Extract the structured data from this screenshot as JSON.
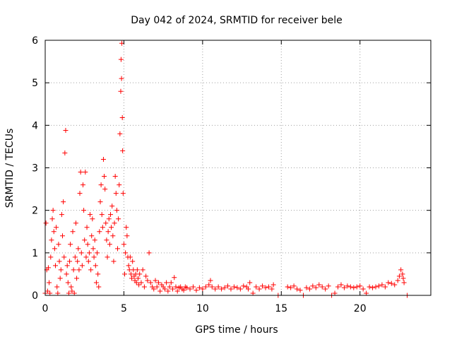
{
  "chart_data": {
    "type": "scatter",
    "title": "Day 042 of 2024, SRMTID for receiver bele",
    "xlabel": "GPS time / hours",
    "ylabel": "SRMTID / TECUs",
    "xlim": [
      0,
      24.5
    ],
    "ylim": [
      0,
      6
    ],
    "xticks": [
      0,
      5,
      10,
      15,
      20
    ],
    "xtick_labels": [
      "0",
      "5",
      "10",
      "15",
      "20"
    ],
    "yticks": [
      0,
      1,
      2,
      3,
      4,
      5,
      6
    ],
    "ytick_labels": [
      "0",
      "1",
      "2",
      "3",
      "4",
      "5",
      "6"
    ],
    "grid": true,
    "marker": "plus",
    "series": [
      {
        "name": "SRMTID",
        "color": "#ff0000",
        "points": [
          [
            0.0,
            0.05
          ],
          [
            0.05,
            1.7
          ],
          [
            0.1,
            0.6
          ],
          [
            0.15,
            0.1
          ],
          [
            0.2,
            0.65
          ],
          [
            0.25,
            0.3
          ],
          [
            0.3,
            0.05
          ],
          [
            0.35,
            0.9
          ],
          [
            0.4,
            1.3
          ],
          [
            0.45,
            1.8
          ],
          [
            0.5,
            2.0
          ],
          [
            0.55,
            1.5
          ],
          [
            0.6,
            1.1
          ],
          [
            0.65,
            0.7
          ],
          [
            0.7,
            1.6
          ],
          [
            0.75,
            0.2
          ],
          [
            0.8,
            0.05
          ],
          [
            0.85,
            1.2
          ],
          [
            0.9,
            0.8
          ],
          [
            0.95,
            0.4
          ],
          [
            1.0,
            0.6
          ],
          [
            1.05,
            1.9
          ],
          [
            1.1,
            1.4
          ],
          [
            1.15,
            2.2
          ],
          [
            1.2,
            0.9
          ],
          [
            1.25,
            3.35
          ],
          [
            1.3,
            3.88
          ],
          [
            1.35,
            0.5
          ],
          [
            1.4,
            0.7
          ],
          [
            1.45,
            0.3
          ],
          [
            1.5,
            0.05
          ],
          [
            1.55,
            0.8
          ],
          [
            1.6,
            1.2
          ],
          [
            1.65,
            0.2
          ],
          [
            1.7,
            0.1
          ],
          [
            1.75,
            1.5
          ],
          [
            1.8,
            0.6
          ],
          [
            1.85,
            0.05
          ],
          [
            1.9,
            0.9
          ],
          [
            1.95,
            1.7
          ],
          [
            2.0,
            0.4
          ],
          [
            2.05,
            0.8
          ],
          [
            2.1,
            1.1
          ],
          [
            2.15,
            0.6
          ],
          [
            2.2,
            2.4
          ],
          [
            2.25,
            2.9
          ],
          [
            2.3,
            1.0
          ],
          [
            2.35,
            0.7
          ],
          [
            2.4,
            2.6
          ],
          [
            2.45,
            2.0
          ],
          [
            2.5,
            1.3
          ],
          [
            2.55,
            2.9
          ],
          [
            2.6,
            0.9
          ],
          [
            2.65,
            1.6
          ],
          [
            2.7,
            1.2
          ],
          [
            2.75,
            0.8
          ],
          [
            2.8,
            1.0
          ],
          [
            2.85,
            1.9
          ],
          [
            2.9,
            0.6
          ],
          [
            2.95,
            1.4
          ],
          [
            3.0,
            1.8
          ],
          [
            3.05,
            1.1
          ],
          [
            3.1,
            0.9
          ],
          [
            3.15,
            1.3
          ],
          [
            3.2,
            0.7
          ],
          [
            3.25,
            0.3
          ],
          [
            3.3,
            1.0
          ],
          [
            3.35,
            0.5
          ],
          [
            3.4,
            0.2
          ],
          [
            3.45,
            1.5
          ],
          [
            3.5,
            2.2
          ],
          [
            3.55,
            2.6
          ],
          [
            3.6,
            1.9
          ],
          [
            3.65,
            1.6
          ],
          [
            3.7,
            3.2
          ],
          [
            3.75,
            2.8
          ],
          [
            3.8,
            2.5
          ],
          [
            3.85,
            1.7
          ],
          [
            3.9,
            1.3
          ],
          [
            3.95,
            0.9
          ],
          [
            4.0,
            1.5
          ],
          [
            4.05,
            1.8
          ],
          [
            4.1,
            1.2
          ],
          [
            4.15,
            1.9
          ],
          [
            4.2,
            1.6
          ],
          [
            4.25,
            2.1
          ],
          [
            4.3,
            1.4
          ],
          [
            4.35,
            0.8
          ],
          [
            4.4,
            1.7
          ],
          [
            4.45,
            2.8
          ],
          [
            4.5,
            2.4
          ],
          [
            4.55,
            2.0
          ],
          [
            4.6,
            1.1
          ],
          [
            4.65,
            1.8
          ],
          [
            4.7,
            2.6
          ],
          [
            4.75,
            3.8
          ],
          [
            4.8,
            4.8
          ],
          [
            4.82,
            5.55
          ],
          [
            4.85,
            5.1
          ],
          [
            4.87,
            5.93
          ],
          [
            4.9,
            4.18
          ],
          [
            4.92,
            3.4
          ],
          [
            4.95,
            2.4
          ],
          [
            5.0,
            1.2
          ],
          [
            5.05,
            0.5
          ],
          [
            5.1,
            1.0
          ],
          [
            5.15,
            1.6
          ],
          [
            5.2,
            1.4
          ],
          [
            5.25,
            0.9
          ],
          [
            5.3,
            0.7
          ],
          [
            5.35,
            0.6
          ],
          [
            5.4,
            0.9
          ],
          [
            5.45,
            0.5
          ],
          [
            5.5,
            0.4
          ],
          [
            5.55,
            0.8
          ],
          [
            5.6,
            0.6
          ],
          [
            5.65,
            0.45
          ],
          [
            5.7,
            0.35
          ],
          [
            5.75,
            0.5
          ],
          [
            5.8,
            0.3
          ],
          [
            5.85,
            0.6
          ],
          [
            5.9,
            0.4
          ],
          [
            5.95,
            0.25
          ],
          [
            6.0,
            0.5
          ],
          [
            6.1,
            0.3
          ],
          [
            6.2,
            0.6
          ],
          [
            6.3,
            0.2
          ],
          [
            6.4,
            0.45
          ],
          [
            6.5,
            0.35
          ],
          [
            6.6,
            1.0
          ],
          [
            6.7,
            0.3
          ],
          [
            6.8,
            0.2
          ],
          [
            6.9,
            0.15
          ],
          [
            7.0,
            0.35
          ],
          [
            7.1,
            0.2
          ],
          [
            7.2,
            0.3
          ],
          [
            7.3,
            0.1
          ],
          [
            7.4,
            0.25
          ],
          [
            7.5,
            0.2
          ],
          [
            7.6,
            0.15
          ],
          [
            7.7,
            0.3
          ],
          [
            7.8,
            0.1
          ],
          [
            7.9,
            0.2
          ],
          [
            8.0,
            0.3
          ],
          [
            8.1,
            0.15
          ],
          [
            8.2,
            0.42
          ],
          [
            8.3,
            0.2
          ],
          [
            8.4,
            0.1
          ],
          [
            8.5,
            0.18
          ],
          [
            8.6,
            0.2
          ],
          [
            8.7,
            0.15
          ],
          [
            8.8,
            0.12
          ],
          [
            8.9,
            0.2
          ],
          [
            9.0,
            0.18
          ],
          [
            9.2,
            0.15
          ],
          [
            9.4,
            0.2
          ],
          [
            9.6,
            0.12
          ],
          [
            9.8,
            0.18
          ],
          [
            10.0,
            0.15
          ],
          [
            10.2,
            0.2
          ],
          [
            10.4,
            0.25
          ],
          [
            10.5,
            0.35
          ],
          [
            10.6,
            0.2
          ],
          [
            10.8,
            0.15
          ],
          [
            11.0,
            0.2
          ],
          [
            11.2,
            0.15
          ],
          [
            11.4,
            0.18
          ],
          [
            11.6,
            0.22
          ],
          [
            11.8,
            0.15
          ],
          [
            12.0,
            0.2
          ],
          [
            12.2,
            0.18
          ],
          [
            12.4,
            0.15
          ],
          [
            12.6,
            0.22
          ],
          [
            12.8,
            0.2
          ],
          [
            12.9,
            0.15
          ],
          [
            13.0,
            0.3
          ],
          [
            13.2,
            0.05
          ],
          [
            13.4,
            0.2
          ],
          [
            13.6,
            0.15
          ],
          [
            13.8,
            0.22
          ],
          [
            14.0,
            0.18
          ],
          [
            14.2,
            0.2
          ],
          [
            14.4,
            0.15
          ],
          [
            14.5,
            0.25
          ],
          [
            14.8,
            0.0
          ],
          [
            15.4,
            0.2
          ],
          [
            15.6,
            0.18
          ],
          [
            15.8,
            0.22
          ],
          [
            16.0,
            0.15
          ],
          [
            16.2,
            0.12
          ],
          [
            16.4,
            0.0
          ],
          [
            16.6,
            0.18
          ],
          [
            16.8,
            0.15
          ],
          [
            17.0,
            0.22
          ],
          [
            17.2,
            0.18
          ],
          [
            17.4,
            0.25
          ],
          [
            17.6,
            0.2
          ],
          [
            17.8,
            0.15
          ],
          [
            18.0,
            0.22
          ],
          [
            18.2,
            0.0
          ],
          [
            18.4,
            0.05
          ],
          [
            18.6,
            0.2
          ],
          [
            18.8,
            0.25
          ],
          [
            19.0,
            0.18
          ],
          [
            19.2,
            0.22
          ],
          [
            19.4,
            0.2
          ],
          [
            19.6,
            0.18
          ],
          [
            19.8,
            0.2
          ],
          [
            20.0,
            0.22
          ],
          [
            20.2,
            0.15
          ],
          [
            20.4,
            0.05
          ],
          [
            20.6,
            0.2
          ],
          [
            20.8,
            0.18
          ],
          [
            21.0,
            0.2
          ],
          [
            21.2,
            0.22
          ],
          [
            21.4,
            0.25
          ],
          [
            21.6,
            0.2
          ],
          [
            21.8,
            0.3
          ],
          [
            22.0,
            0.28
          ],
          [
            22.2,
            0.25
          ],
          [
            22.4,
            0.35
          ],
          [
            22.5,
            0.45
          ],
          [
            22.6,
            0.6
          ],
          [
            22.7,
            0.5
          ],
          [
            22.75,
            0.4
          ],
          [
            22.8,
            0.3
          ],
          [
            23.0,
            0.0
          ]
        ]
      }
    ]
  }
}
